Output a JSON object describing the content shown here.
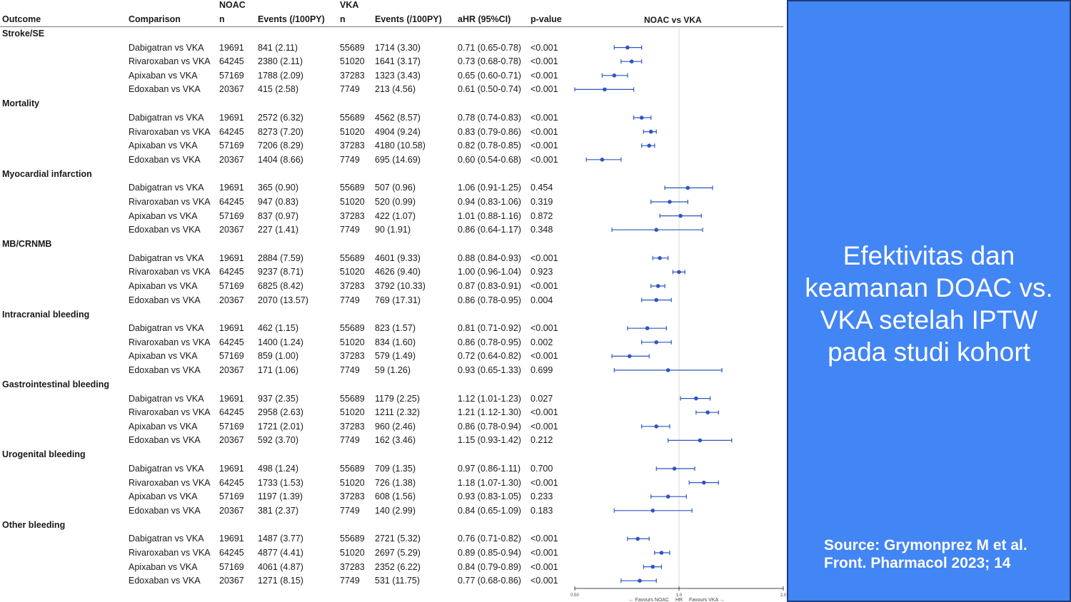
{
  "headers": {
    "outcome": "Outcome",
    "comparison": "Comparison",
    "noac_group": "NOAC",
    "noac_n": "n",
    "noac_events": "Events (/100PY)",
    "vka_group": "VKA",
    "vka_n": "n",
    "vka_events": "Events (/100PY)",
    "ahr": "aHR (95%CI)",
    "pvalue": "p-value",
    "plot_title": "NOAC vs VKA"
  },
  "chart_data": {
    "type": "forest",
    "title": "NOAC vs VKA",
    "xscale": "log",
    "xlim": [
      0.5,
      2.0
    ],
    "xticks": [
      "0.50",
      "1.0",
      "2.0"
    ],
    "xlabel": "HR",
    "favours_left": "← Favours NOAC",
    "favours_right": "Favours VKA →",
    "reference": 1.0,
    "groups": [
      {
        "outcome": "Stroke/SE",
        "rows": [
          {
            "comparison": "Dabigatran vs VKA",
            "noac_n": "19691",
            "noac_events": "841 (2.11)",
            "vka_n": "55689",
            "vka_events": "1714 (3.30)",
            "ahr_text": "0.71 (0.65-0.78)",
            "hr": 0.71,
            "lo": 0.65,
            "hi": 0.78,
            "p": "<0.001"
          },
          {
            "comparison": "Rivaroxaban vs VKA",
            "noac_n": "64245",
            "noac_events": "2380 (2.11)",
            "vka_n": "51020",
            "vka_events": "1641 (3.17)",
            "ahr_text": "0.73 (0.68-0.78)",
            "hr": 0.73,
            "lo": 0.68,
            "hi": 0.78,
            "p": "<0.001"
          },
          {
            "comparison": "Apixaban vs VKA",
            "noac_n": "57169",
            "noac_events": "1788 (2.09)",
            "vka_n": "37283",
            "vka_events": "1323 (3.43)",
            "ahr_text": "0.65 (0.60-0.71)",
            "hr": 0.65,
            "lo": 0.6,
            "hi": 0.71,
            "p": "<0.001"
          },
          {
            "comparison": "Edoxaban vs VKA",
            "noac_n": "20367",
            "noac_events": "415 (2.58)",
            "vka_n": "7749",
            "vka_events": "213 (4.56)",
            "ahr_text": "0.61 (0.50-0.74)",
            "hr": 0.61,
            "lo": 0.5,
            "hi": 0.74,
            "p": "<0.001"
          }
        ]
      },
      {
        "outcome": "Mortality",
        "rows": [
          {
            "comparison": "Dabigatran vs VKA",
            "noac_n": "19691",
            "noac_events": "2572 (6.32)",
            "vka_n": "55689",
            "vka_events": "4562 (8.57)",
            "ahr_text": "0.78 (0.74-0.83)",
            "hr": 0.78,
            "lo": 0.74,
            "hi": 0.83,
            "p": "<0.001"
          },
          {
            "comparison": "Rivaroxaban vs VKA",
            "noac_n": "64245",
            "noac_events": "8273 (7.20)",
            "vka_n": "51020",
            "vka_events": "4904 (9.24)",
            "ahr_text": "0.83 (0.79-0.86)",
            "hr": 0.83,
            "lo": 0.79,
            "hi": 0.86,
            "p": "<0.001"
          },
          {
            "comparison": "Apixaban vs VKA",
            "noac_n": "57169",
            "noac_events": "7206 (8.29)",
            "vka_n": "37283",
            "vka_events": "4180 (10.58)",
            "ahr_text": "0.82 (0.78-0.85)",
            "hr": 0.82,
            "lo": 0.78,
            "hi": 0.85,
            "p": "<0.001"
          },
          {
            "comparison": "Edoxaban vs VKA",
            "noac_n": "20367",
            "noac_events": "1404 (8.66)",
            "vka_n": "7749",
            "vka_events": "695 (14.69)",
            "ahr_text": "0.60 (0.54-0.68)",
            "hr": 0.6,
            "lo": 0.54,
            "hi": 0.68,
            "p": "<0.001"
          }
        ]
      },
      {
        "outcome": "Myocardial infarction",
        "rows": [
          {
            "comparison": "Dabigatran vs VKA",
            "noac_n": "19691",
            "noac_events": "365 (0.90)",
            "vka_n": "55689",
            "vka_events": "507 (0.96)",
            "ahr_text": "1.06 (0.91-1.25)",
            "hr": 1.06,
            "lo": 0.91,
            "hi": 1.25,
            "p": "0.454"
          },
          {
            "comparison": "Rivaroxaban vs VKA",
            "noac_n": "64245",
            "noac_events": "947 (0.83)",
            "vka_n": "51020",
            "vka_events": "520 (0.99)",
            "ahr_text": "0.94 (0.83-1.06)",
            "hr": 0.94,
            "lo": 0.83,
            "hi": 1.06,
            "p": "0.319"
          },
          {
            "comparison": "Apixaban vs VKA",
            "noac_n": "57169",
            "noac_events": "837 (0.97)",
            "vka_n": "37283",
            "vka_events": "422 (1.07)",
            "ahr_text": "1.01 (0.88-1.16)",
            "hr": 1.01,
            "lo": 0.88,
            "hi": 1.16,
            "p": "0.872"
          },
          {
            "comparison": "Edoxaban vs VKA",
            "noac_n": "20367",
            "noac_events": "227 (1.41)",
            "vka_n": "7749",
            "vka_events": "90 (1.91)",
            "ahr_text": "0.86 (0.64-1.17)",
            "hr": 0.86,
            "lo": 0.64,
            "hi": 1.17,
            "p": "0.348"
          }
        ]
      },
      {
        "outcome": "MB/CRNMB",
        "rows": [
          {
            "comparison": "Dabigatran vs VKA",
            "noac_n": "19691",
            "noac_events": "2884 (7.59)",
            "vka_n": "55689",
            "vka_events": "4601 (9.33)",
            "ahr_text": "0.88 (0.84-0.93)",
            "hr": 0.88,
            "lo": 0.84,
            "hi": 0.93,
            "p": "<0.001"
          },
          {
            "comparison": "Rivaroxaban vs VKA",
            "noac_n": "64245",
            "noac_events": "9237 (8.71)",
            "vka_n": "51020",
            "vka_events": "4626 (9.40)",
            "ahr_text": "1.00 (0.96-1.04)",
            "hr": 1.0,
            "lo": 0.96,
            "hi": 1.04,
            "p": "0.923"
          },
          {
            "comparison": "Apixaban vs VKA",
            "noac_n": "57169",
            "noac_events": "6825 (8.42)",
            "vka_n": "37283",
            "vka_events": "3792 (10.33)",
            "ahr_text": "0.87 (0.83-0.91)",
            "hr": 0.87,
            "lo": 0.83,
            "hi": 0.91,
            "p": "<0.001"
          },
          {
            "comparison": "Edoxaban vs VKA",
            "noac_n": "20367",
            "noac_events": "2070 (13.57)",
            "vka_n": "7749",
            "vka_events": "769 (17.31)",
            "ahr_text": "0.86 (0.78-0.95)",
            "hr": 0.86,
            "lo": 0.78,
            "hi": 0.95,
            "p": "0.004"
          }
        ]
      },
      {
        "outcome": "Intracranial bleeding",
        "rows": [
          {
            "comparison": "Dabigatran vs VKA",
            "noac_n": "19691",
            "noac_events": "462 (1.15)",
            "vka_n": "55689",
            "vka_events": "823 (1.57)",
            "ahr_text": "0.81 (0.71-0.92)",
            "hr": 0.81,
            "lo": 0.71,
            "hi": 0.92,
            "p": "<0.001"
          },
          {
            "comparison": "Rivaroxaban vs VKA",
            "noac_n": "64245",
            "noac_events": "1400 (1.24)",
            "vka_n": "51020",
            "vka_events": "834 (1.60)",
            "ahr_text": "0.86 (0.78-0.95)",
            "hr": 0.86,
            "lo": 0.78,
            "hi": 0.95,
            "p": "0.002"
          },
          {
            "comparison": "Apixaban vs VKA",
            "noac_n": "57169",
            "noac_events": "859 (1.00)",
            "vka_n": "37283",
            "vka_events": "579 (1.49)",
            "ahr_text": "0.72 (0.64-0.82)",
            "hr": 0.72,
            "lo": 0.64,
            "hi": 0.82,
            "p": "<0.001"
          },
          {
            "comparison": "Edoxaban vs VKA",
            "noac_n": "20367",
            "noac_events": "171 (1.06)",
            "vka_n": "7749",
            "vka_events": "59 (1.26)",
            "ahr_text": "0.93 (0.65-1.33)",
            "hr": 0.93,
            "lo": 0.65,
            "hi": 1.33,
            "p": "0.699"
          }
        ]
      },
      {
        "outcome": "Gastrointestinal bleeding",
        "rows": [
          {
            "comparison": "Dabigatran vs VKA",
            "noac_n": "19691",
            "noac_events": "937 (2.35)",
            "vka_n": "55689",
            "vka_events": "1179 (2.25)",
            "ahr_text": "1.12 (1.01-1.23)",
            "hr": 1.12,
            "lo": 1.01,
            "hi": 1.23,
            "p": "0.027"
          },
          {
            "comparison": "Rivaroxaban vs VKA",
            "noac_n": "64245",
            "noac_events": "2958 (2.63)",
            "vka_n": "51020",
            "vka_events": "1211 (2.32)",
            "ahr_text": "1.21 (1.12-1.30)",
            "hr": 1.21,
            "lo": 1.12,
            "hi": 1.3,
            "p": "<0.001"
          },
          {
            "comparison": "Apixaban vs VKA",
            "noac_n": "57169",
            "noac_events": "1721 (2.01)",
            "vka_n": "37283",
            "vka_events": "960 (2.46)",
            "ahr_text": "0.86 (0.78-0.94)",
            "hr": 0.86,
            "lo": 0.78,
            "hi": 0.94,
            "p": "<0.001"
          },
          {
            "comparison": "Edoxaban vs VKA",
            "noac_n": "20367",
            "noac_events": "592 (3.70)",
            "vka_n": "7749",
            "vka_events": "162 (3.46)",
            "ahr_text": "1.15 (0.93-1.42)",
            "hr": 1.15,
            "lo": 0.93,
            "hi": 1.42,
            "p": "0.212"
          }
        ]
      },
      {
        "outcome": "Urogenital bleeding",
        "rows": [
          {
            "comparison": "Dabigatran vs VKA",
            "noac_n": "19691",
            "noac_events": "498 (1.24)",
            "vka_n": "55689",
            "vka_events": "709 (1.35)",
            "ahr_text": "0.97 (0.86-1.11)",
            "hr": 0.97,
            "lo": 0.86,
            "hi": 1.11,
            "p": "0.700"
          },
          {
            "comparison": "Rivaroxaban vs VKA",
            "noac_n": "64245",
            "noac_events": "1733 (1.53)",
            "vka_n": "51020",
            "vka_events": "726 (1.38)",
            "ahr_text": "1.18 (1.07-1.30)",
            "hr": 1.18,
            "lo": 1.07,
            "hi": 1.3,
            "p": "<0.001"
          },
          {
            "comparison": "Apixaban vs VKA",
            "noac_n": "57169",
            "noac_events": "1197 (1.39)",
            "vka_n": "37283",
            "vka_events": "608 (1.56)",
            "ahr_text": "0.93 (0.83-1.05)",
            "hr": 0.93,
            "lo": 0.83,
            "hi": 1.05,
            "p": "0.233"
          },
          {
            "comparison": "Edoxaban vs VKA",
            "noac_n": "20367",
            "noac_events": "381 (2.37)",
            "vka_n": "7749",
            "vka_events": "140 (2.99)",
            "ahr_text": "0.84 (0.65-1.09)",
            "hr": 0.84,
            "lo": 0.65,
            "hi": 1.09,
            "p": "0.183"
          }
        ]
      },
      {
        "outcome": "Other bleeding",
        "rows": [
          {
            "comparison": "Dabigatran vs VKA",
            "noac_n": "19691",
            "noac_events": "1487 (3.77)",
            "vka_n": "55689",
            "vka_events": "2721 (5.32)",
            "ahr_text": "0.76 (0.71-0.82)",
            "hr": 0.76,
            "lo": 0.71,
            "hi": 0.82,
            "p": "<0.001"
          },
          {
            "comparison": "Rivaroxaban vs VKA",
            "noac_n": "64245",
            "noac_events": "4877 (4.41)",
            "vka_n": "51020",
            "vka_events": "2697 (5.29)",
            "ahr_text": "0.89 (0.85-0.94)",
            "hr": 0.89,
            "lo": 0.85,
            "hi": 0.94,
            "p": "<0.001"
          },
          {
            "comparison": "Apixaban vs VKA",
            "noac_n": "57169",
            "noac_events": "4061 (4.87)",
            "vka_n": "37283",
            "vka_events": "2352 (6.22)",
            "ahr_text": "0.84 (0.79-0.89)",
            "hr": 0.84,
            "lo": 0.79,
            "hi": 0.89,
            "p": "<0.001"
          },
          {
            "comparison": "Edoxaban vs VKA",
            "noac_n": "20367",
            "noac_events": "1271 (8.15)",
            "vka_n": "7749",
            "vka_events": "531 (11.75)",
            "ahr_text": "0.77 (0.68-0.86)",
            "hr": 0.77,
            "lo": 0.68,
            "hi": 0.86,
            "p": "<0.001"
          }
        ]
      }
    ]
  },
  "colors": {
    "point": "#2f55c4",
    "panel": "#4285f4",
    "panel_border": "#1e3c78"
  },
  "panel": {
    "title": "Efektivitas dan keamanan DOAC vs. VKA setelah IPTW pada studi kohort",
    "source": "Source: Grymonprez M et al. Front. Pharmacol 2023; 14"
  }
}
